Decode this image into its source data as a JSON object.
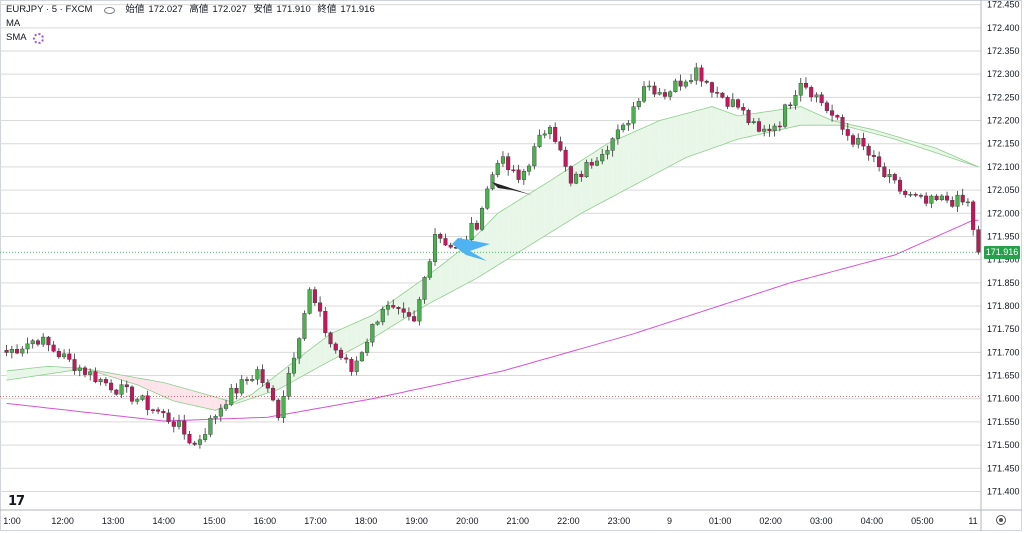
{
  "legend": {
    "symbol": "EURJPY · 5 · FXCM",
    "ohlc": [
      {
        "label": "始値",
        "value": "172.027"
      },
      {
        "label": "高値",
        "value": "172.027"
      },
      {
        "label": "安値",
        "value": "171.910"
      },
      {
        "label": "終値",
        "value": "171.916"
      }
    ],
    "indicators": [
      "MA",
      "SMA"
    ]
  },
  "price_label": "171.916",
  "colors": {
    "up": "#26a69a",
    "down": "#e84f6a",
    "candle_up": "#4caf50",
    "candle_down": "#c2185b",
    "sma": "#d555d5",
    "ribbon_up": "#e8f6e8",
    "ribbon_down": "#fde4ea",
    "grid": "#d9d9d9",
    "price_tag": "#26a04a"
  },
  "chart_data": {
    "type": "candlestick",
    "ylim": [
      171.36,
      172.46
    ],
    "y_ticks": [
      "171.400",
      "171.450",
      "171.500",
      "171.550",
      "171.600",
      "171.650",
      "171.700",
      "171.750",
      "171.800",
      "171.850",
      "171.900",
      "171.950",
      "172.000",
      "172.050",
      "172.100",
      "172.150",
      "172.200",
      "172.250",
      "172.300",
      "172.350",
      "172.400",
      "172.450"
    ],
    "x_ticks": [
      "1:00",
      "12:00",
      "13:00",
      "14:00",
      "15:00",
      "16:00",
      "17:00",
      "18:00",
      "19:00",
      "20:00",
      "21:00",
      "22:00",
      "23:00",
      "9",
      "01:00",
      "02:00",
      "03:00",
      "04:00",
      "05:00",
      "11"
    ],
    "last_close": 171.916,
    "sma_anchor": [
      [
        0,
        171.59
      ],
      [
        30,
        171.552
      ],
      [
        50,
        171.56
      ],
      [
        70,
        171.6
      ],
      [
        95,
        171.66
      ],
      [
        120,
        171.74
      ],
      [
        150,
        171.85
      ],
      [
        170,
        171.91
      ],
      [
        185,
        171.985
      ]
    ],
    "ma_fast_anchor": [
      [
        0,
        171.66
      ],
      [
        8,
        171.67
      ],
      [
        15,
        171.665
      ],
      [
        25,
        171.63
      ],
      [
        32,
        171.595
      ],
      [
        40,
        171.575
      ],
      [
        47,
        171.61
      ],
      [
        55,
        171.68
      ],
      [
        62,
        171.74
      ],
      [
        70,
        171.78
      ],
      [
        80,
        171.86
      ],
      [
        88,
        171.93
      ],
      [
        94,
        172.0
      ],
      [
        104,
        172.07
      ],
      [
        115,
        172.15
      ],
      [
        125,
        172.2
      ],
      [
        135,
        172.23
      ],
      [
        140,
        172.21
      ],
      [
        152,
        172.23
      ],
      [
        158,
        172.2
      ],
      [
        166,
        172.18
      ],
      [
        178,
        172.14
      ],
      [
        186,
        172.1
      ]
    ],
    "ma_slow_anchor": [
      [
        0,
        171.64
      ],
      [
        15,
        171.665
      ],
      [
        30,
        171.635
      ],
      [
        38,
        171.61
      ],
      [
        44,
        171.59
      ],
      [
        52,
        171.62
      ],
      [
        60,
        171.67
      ],
      [
        70,
        171.73
      ],
      [
        80,
        171.8
      ],
      [
        90,
        171.86
      ],
      [
        100,
        171.93
      ],
      [
        110,
        172.0
      ],
      [
        120,
        172.06
      ],
      [
        130,
        172.12
      ],
      [
        140,
        172.16
      ],
      [
        152,
        172.19
      ],
      [
        160,
        172.19
      ],
      [
        170,
        172.16
      ],
      [
        186,
        172.1
      ]
    ],
    "close_anchor": [
      [
        0,
        171.7
      ],
      [
        6,
        171.73
      ],
      [
        12,
        171.68
      ],
      [
        18,
        171.64
      ],
      [
        25,
        171.6
      ],
      [
        32,
        171.55
      ],
      [
        36,
        171.5
      ],
      [
        42,
        171.6
      ],
      [
        48,
        171.66
      ],
      [
        52,
        171.57
      ],
      [
        58,
        171.83
      ],
      [
        62,
        171.72
      ],
      [
        66,
        171.66
      ],
      [
        72,
        171.8
      ],
      [
        78,
        171.76
      ],
      [
        82,
        171.96
      ],
      [
        86,
        171.92
      ],
      [
        90,
        171.98
      ],
      [
        94,
        172.12
      ],
      [
        98,
        172.07
      ],
      [
        104,
        172.2
      ],
      [
        108,
        172.06
      ],
      [
        114,
        172.14
      ],
      [
        118,
        172.18
      ],
      [
        122,
        172.28
      ],
      [
        126,
        172.26
      ],
      [
        132,
        172.31
      ],
      [
        136,
        172.26
      ],
      [
        140,
        172.23
      ],
      [
        144,
        172.17
      ],
      [
        148,
        172.2
      ],
      [
        152,
        172.29
      ],
      [
        156,
        172.24
      ],
      [
        160,
        172.18
      ],
      [
        164,
        172.14
      ],
      [
        168,
        172.08
      ],
      [
        172,
        172.04
      ],
      [
        176,
        172.02
      ],
      [
        180,
        172.03
      ],
      [
        184,
        172.02
      ],
      [
        186,
        171.916
      ]
    ]
  }
}
